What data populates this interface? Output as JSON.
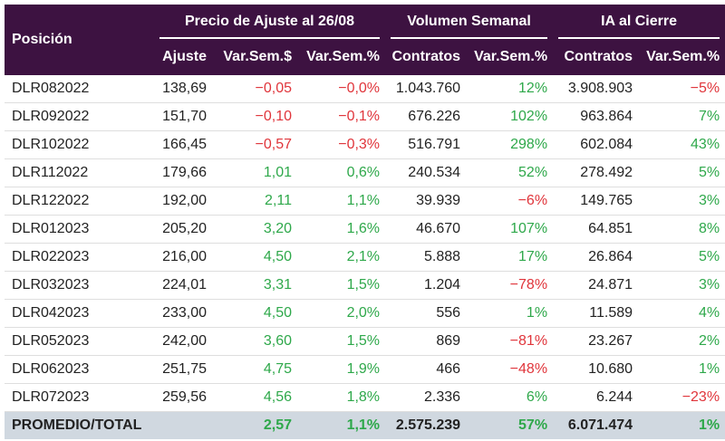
{
  "header": {
    "position": "Posición",
    "group_price": "Precio de Ajuste al 26/08",
    "group_volume": "Volumen Semanal",
    "group_ia": "IA al Cierre",
    "columns": [
      "Ajuste",
      "Var.Sem.$",
      "Var.Sem.%",
      "Contratos",
      "Var.Sem.%",
      "Contratos",
      "Var.Sem.%"
    ]
  },
  "rows": [
    {
      "name": "DLR082022",
      "ajuste": "138,69",
      "var_usd": "−0,05",
      "var_pct": "−0,0%",
      "vol": "1.043.760",
      "vol_var": "12%",
      "ia": "3.908.903",
      "ia_var": "−5%"
    },
    {
      "name": "DLR092022",
      "ajuste": "151,70",
      "var_usd": "−0,10",
      "var_pct": "−0,1%",
      "vol": "676.226",
      "vol_var": "102%",
      "ia": "963.864",
      "ia_var": "7%"
    },
    {
      "name": "DLR102022",
      "ajuste": "166,45",
      "var_usd": "−0,57",
      "var_pct": "−0,3%",
      "vol": "516.791",
      "vol_var": "298%",
      "ia": "602.084",
      "ia_var": "43%"
    },
    {
      "name": "DLR112022",
      "ajuste": "179,66",
      "var_usd": "1,01",
      "var_pct": "0,6%",
      "vol": "240.534",
      "vol_var": "52%",
      "ia": "278.492",
      "ia_var": "5%"
    },
    {
      "name": "DLR122022",
      "ajuste": "192,00",
      "var_usd": "2,11",
      "var_pct": "1,1%",
      "vol": "39.939",
      "vol_var": "−6%",
      "ia": "149.765",
      "ia_var": "3%"
    },
    {
      "name": "DLR012023",
      "ajuste": "205,20",
      "var_usd": "3,20",
      "var_pct": "1,6%",
      "vol": "46.670",
      "vol_var": "107%",
      "ia": "64.851",
      "ia_var": "8%"
    },
    {
      "name": "DLR022023",
      "ajuste": "216,00",
      "var_usd": "4,50",
      "var_pct": "2,1%",
      "vol": "5.888",
      "vol_var": "17%",
      "ia": "26.864",
      "ia_var": "5%"
    },
    {
      "name": "DLR032023",
      "ajuste": "224,01",
      "var_usd": "3,31",
      "var_pct": "1,5%",
      "vol": "1.204",
      "vol_var": "−78%",
      "ia": "24.871",
      "ia_var": "3%"
    },
    {
      "name": "DLR042023",
      "ajuste": "233,00",
      "var_usd": "4,50",
      "var_pct": "2,0%",
      "vol": "556",
      "vol_var": "1%",
      "ia": "11.589",
      "ia_var": "4%"
    },
    {
      "name": "DLR052023",
      "ajuste": "242,00",
      "var_usd": "3,60",
      "var_pct": "1,5%",
      "vol": "869",
      "vol_var": "−81%",
      "ia": "23.267",
      "ia_var": "2%"
    },
    {
      "name": "DLR062023",
      "ajuste": "251,75",
      "var_usd": "4,75",
      "var_pct": "1,9%",
      "vol": "466",
      "vol_var": "−48%",
      "ia": "10.680",
      "ia_var": "1%"
    },
    {
      "name": "DLR072023",
      "ajuste": "259,56",
      "var_usd": "4,56",
      "var_pct": "1,8%",
      "vol": "2.336",
      "vol_var": "6%",
      "ia": "6.244",
      "ia_var": "−23%"
    }
  ],
  "total": {
    "name": "PROMEDIO/TOTAL",
    "ajuste": "",
    "var_usd": "2,57",
    "var_pct": "1,1%",
    "vol": "2.575.239",
    "vol_var": "57%",
    "ia": "6.071.474",
    "ia_var": "1%"
  },
  "colors": {
    "header_bg": "#3d1241",
    "total_bg": "#d0d8e0",
    "negative": "#e0353b",
    "positive": "#2ea84a"
  }
}
